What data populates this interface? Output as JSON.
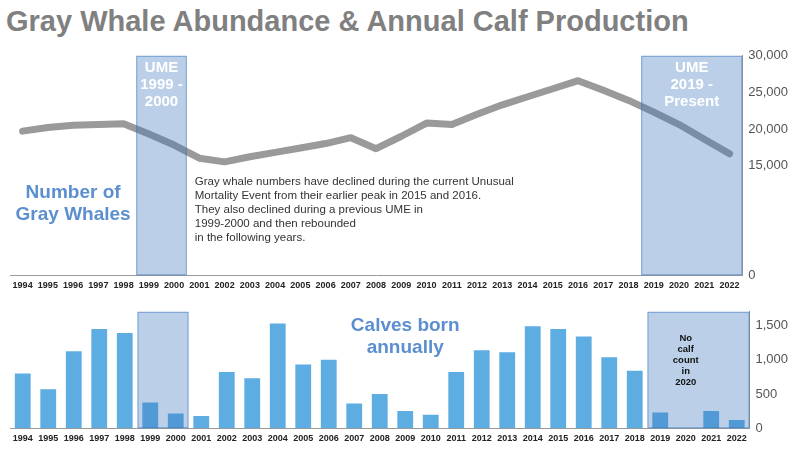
{
  "title": "Gray Whale Abundance & Annual Calf Production",
  "chart_data": [
    {
      "type": "line",
      "categories": [
        "1994",
        "1995",
        "1996",
        "1997",
        "1998",
        "1999",
        "2000",
        "2001",
        "2002",
        "2003",
        "2004",
        "2005",
        "2006",
        "2007",
        "2008",
        "2009",
        "2010",
        "2011",
        "2012",
        "2013",
        "2014",
        "2015",
        "2016",
        "2017",
        "2018",
        "2019",
        "2020",
        "2021",
        "2022"
      ],
      "series": [
        {
          "name": [
            "Number of",
            "Gray Whales"
          ],
          "color": "#9a9a9a",
          "values": [
            19700,
            20200,
            20500,
            20600,
            20700,
            19300,
            17800,
            16000,
            15500,
            16200,
            16800,
            17400,
            18000,
            18800,
            17300,
            19000,
            20800,
            20600,
            22000,
            23300,
            24400,
            25500,
            26600,
            25300,
            23900,
            22300,
            20600,
            18600,
            16600
          ]
        }
      ],
      "ylim": [
        0,
        30000
      ],
      "yticks": [
        0,
        {
          "value": 15000,
          "label": "15,000"
        },
        {
          "value": 20000,
          "label": "20,000"
        },
        {
          "value": 25000,
          "label": "25,000"
        },
        {
          "value": 30000,
          "label": "30,000"
        }
      ],
      "grid": false,
      "shaded_periods": [
        {
          "start": "1999",
          "end": "2000",
          "label": [
            "UME",
            "1999 -",
            "2000"
          ]
        },
        {
          "start": "2019",
          "end": "2022",
          "label": [
            "UME",
            "2019 -",
            "Present"
          ]
        }
      ],
      "annotation": [
        "Gray whale numbers have declined during the current Unusual",
        "Mortality Event from their earlier peak in 2015 and 2016.",
        "They also declined during a previous UME in",
        "1999-2000 and then rebounded",
        "in the following years."
      ]
    },
    {
      "type": "bar",
      "categories": [
        "1994",
        "1995",
        "1996",
        "1997",
        "1998",
        "1999",
        "2000",
        "2001",
        "2002",
        "2003",
        "2004",
        "2005",
        "2006",
        "2007",
        "2008",
        "2009",
        "2010",
        "2011",
        "2012",
        "2013",
        "2014",
        "2015",
        "2016",
        "2017",
        "2018",
        "2019",
        "2020",
        "2021",
        "2022"
      ],
      "series": [
        {
          "name": [
            "Calves born",
            "annually"
          ],
          "color": "#5dade2",
          "values": [
            800,
            570,
            1125,
            1450,
            1390,
            375,
            215,
            180,
            820,
            730,
            1530,
            930,
            1000,
            360,
            500,
            250,
            195,
            820,
            1140,
            1110,
            1490,
            1450,
            1340,
            1035,
            840,
            230,
            null,
            250,
            120
          ]
        }
      ],
      "ylim": [
        0,
        1700
      ],
      "yticks": [
        0,
        500,
        {
          "value": 1000,
          "label": "1,000"
        },
        {
          "value": 1500,
          "label": "1,500"
        }
      ],
      "grid": false,
      "shaded_periods": [
        {
          "start": "1999",
          "end": "2000"
        },
        {
          "start": "2019",
          "end": "2022"
        }
      ],
      "notes": [
        {
          "category": "2020",
          "text": [
            "No",
            "calf",
            "count",
            "in",
            "2020"
          ]
        }
      ]
    }
  ]
}
